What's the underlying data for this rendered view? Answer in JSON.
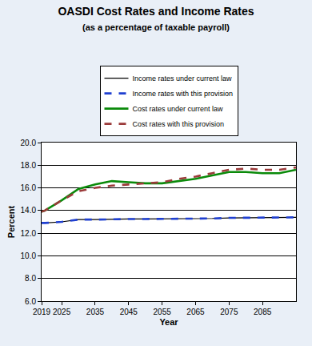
{
  "chart_data": {
    "type": "line",
    "title": "OASDI Cost Rates and Income Rates",
    "subtitle": "(as a percentage of taxable payroll)",
    "x_label": "Year",
    "y_label": "Percent",
    "x": [
      2019,
      2020,
      2025,
      2030,
      2035,
      2040,
      2045,
      2050,
      2055,
      2060,
      2065,
      2070,
      2075,
      2080,
      2085,
      2090,
      2095
    ],
    "series": [
      {
        "name": "Income rates under current law",
        "color": "#000000",
        "line_style": "solid",
        "values": [
          12.9,
          12.9,
          13.0,
          13.2,
          13.2,
          13.25,
          13.25,
          13.25,
          13.25,
          13.3,
          13.3,
          13.3,
          13.35,
          13.35,
          13.35,
          13.35,
          13.4
        ]
      },
      {
        "name": "Income rates with this provision",
        "color": "#1f3fd0",
        "line_style": "dash",
        "values": [
          12.9,
          12.9,
          13.0,
          13.2,
          13.2,
          13.25,
          13.25,
          13.25,
          13.25,
          13.3,
          13.3,
          13.3,
          13.35,
          13.35,
          13.35,
          13.35,
          13.4
        ]
      },
      {
        "name": "Cost rates under current law",
        "color": "#0a8a0a",
        "line_style": "solid",
        "values": [
          13.9,
          14.0,
          14.9,
          15.9,
          16.3,
          16.6,
          16.5,
          16.4,
          16.4,
          16.6,
          16.8,
          17.1,
          17.4,
          17.4,
          17.3,
          17.3,
          17.6
        ]
      },
      {
        "name": "Cost rates with this provision",
        "color": "#9b3a3a",
        "line_style": "dash",
        "values": [
          13.9,
          14.0,
          14.9,
          15.7,
          16.0,
          16.2,
          16.3,
          16.4,
          16.5,
          16.8,
          17.0,
          17.3,
          17.6,
          17.7,
          17.6,
          17.6,
          17.8
        ]
      }
    ],
    "xlim": [
      2019,
      2095
    ],
    "xticks": [
      2019,
      2025,
      2035,
      2045,
      2055,
      2065,
      2075,
      2085
    ],
    "ylim": [
      6,
      20
    ],
    "yticks": [
      {
        "value": 6,
        "label": "6.0"
      },
      {
        "value": 8,
        "label": "8.0"
      },
      {
        "value": 10,
        "label": "10.0"
      },
      {
        "value": 12,
        "label": "12.0"
      },
      {
        "value": 14,
        "label": "14.0"
      },
      {
        "value": 16,
        "label": "16.0"
      },
      {
        "value": 18,
        "label": "18.0"
      },
      {
        "value": 20,
        "label": "20.0"
      }
    ],
    "grid": true,
    "legend": "top"
  }
}
